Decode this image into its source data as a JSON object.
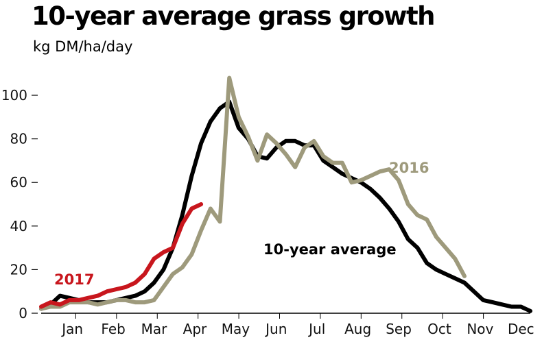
{
  "chart_data": {
    "type": "line",
    "title": "10-year average grass growth",
    "subtitle": "kg DM/ha/day",
    "xlabel": "",
    "ylabel": "kg DM/ha/day",
    "ylim": [
      0,
      110
    ],
    "yticks": [
      0,
      20,
      40,
      60,
      80,
      100
    ],
    "xlim": [
      0,
      52
    ],
    "months": [
      "Jan",
      "Feb",
      "Mar",
      "Apr",
      "May",
      "Jun",
      "Jul",
      "Aug",
      "Sep",
      "Oct",
      "Nov",
      "Dec"
    ],
    "grid": false,
    "series": [
      {
        "name": "10-year average",
        "color": "#000000",
        "x": [
          0,
          1,
          2,
          3,
          4,
          5,
          6,
          7,
          8,
          9,
          10,
          11,
          12,
          13,
          14,
          15,
          16,
          17,
          18,
          19,
          20,
          21,
          22,
          23,
          24,
          25,
          26,
          27,
          28,
          29,
          30,
          31,
          32,
          33,
          34,
          35,
          36,
          37,
          38,
          39,
          40,
          41,
          42,
          43,
          44,
          45,
          46,
          47,
          48,
          49,
          50,
          51,
          52
        ],
        "values": [
          2,
          4,
          8,
          7,
          6,
          5,
          5,
          5,
          6,
          7,
          8,
          10,
          14,
          20,
          30,
          45,
          63,
          78,
          88,
          94,
          97,
          85,
          80,
          72,
          71,
          76,
          79,
          79,
          77,
          77,
          70,
          67,
          64,
          62,
          60,
          57,
          53,
          48,
          42,
          34,
          30,
          23,
          20,
          18,
          16,
          14,
          10,
          6,
          5,
          4,
          3,
          3,
          1
        ]
      },
      {
        "name": "2016",
        "color": "#9e9a7c",
        "x": [
          0,
          1,
          2,
          3,
          4,
          5,
          6,
          7,
          8,
          9,
          10,
          11,
          12,
          13,
          14,
          15,
          16,
          17,
          18,
          19,
          20,
          21,
          22,
          23,
          24,
          25,
          26,
          27,
          28,
          29,
          30,
          31,
          32,
          33,
          34,
          35,
          36,
          37,
          38,
          39,
          40,
          41,
          42,
          43,
          44,
          45
        ],
        "values": [
          2,
          3,
          3,
          5,
          5,
          5,
          4,
          5,
          6,
          6,
          5,
          5,
          6,
          12,
          18,
          21,
          27,
          38,
          48,
          42,
          108,
          90,
          81,
          70,
          82,
          78,
          73,
          67,
          76,
          79,
          72,
          69,
          69,
          60,
          61,
          63,
          65,
          66,
          61,
          50,
          45,
          43,
          35,
          30,
          25,
          17
        ]
      },
      {
        "name": "2017",
        "color": "#c8161d",
        "x": [
          0,
          1,
          2,
          3,
          4,
          5,
          6,
          7,
          8,
          9,
          10,
          11,
          12,
          13,
          14,
          15,
          16,
          17
        ],
        "values": [
          3,
          5,
          4,
          6,
          6,
          7,
          8,
          10,
          11,
          12,
          14,
          18,
          25,
          28,
          30,
          41,
          48,
          50
        ]
      }
    ],
    "labels": [
      {
        "text": "2017",
        "series": "2017"
      },
      {
        "text": "2016",
        "series": "2016"
      },
      {
        "text": "10-year average",
        "series": "10-year average"
      }
    ]
  }
}
